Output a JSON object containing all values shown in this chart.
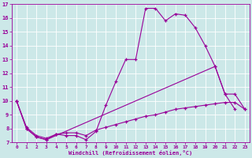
{
  "xlabel": "Windchill (Refroidissement éolien,°C)",
  "bg_color": "#cce8e8",
  "line_color": "#990099",
  "grid_color": "#ffffff",
  "xlim": [
    -0.5,
    23.5
  ],
  "ylim": [
    7,
    17
  ],
  "yticks": [
    7,
    8,
    9,
    10,
    11,
    12,
    13,
    14,
    15,
    16,
    17
  ],
  "xticks": [
    0,
    1,
    2,
    3,
    4,
    5,
    6,
    7,
    8,
    9,
    10,
    11,
    12,
    13,
    14,
    15,
    16,
    17,
    18,
    19,
    20,
    21,
    22,
    23
  ],
  "line1_x": [
    0,
    1,
    2,
    3,
    4,
    5,
    6,
    7,
    8,
    9,
    10,
    11,
    12,
    13,
    14,
    15,
    16,
    17,
    18,
    19,
    20,
    21,
    22
  ],
  "line1_y": [
    10,
    8,
    7.4,
    7.2,
    7.6,
    7.5,
    7.5,
    7.2,
    7.8,
    9.7,
    11.4,
    13.0,
    13.0,
    16.7,
    16.7,
    15.8,
    16.3,
    16.2,
    15.3,
    14.0,
    12.5,
    10.5,
    9.4
  ],
  "line2_x": [
    0,
    1,
    2,
    3,
    4,
    5,
    6,
    7,
    8,
    9,
    10,
    11,
    12,
    13,
    14,
    15,
    16,
    17,
    18,
    19,
    20,
    21,
    22,
    23
  ],
  "line2_y": [
    10,
    8.1,
    7.5,
    7.3,
    7.6,
    7.7,
    7.7,
    7.5,
    7.9,
    8.1,
    8.3,
    8.5,
    8.7,
    8.9,
    9.0,
    9.2,
    9.4,
    9.5,
    9.6,
    9.7,
    9.8,
    9.9,
    9.9,
    9.4
  ],
  "line3_x": [
    0,
    1,
    2,
    3,
    20,
    21,
    22,
    23
  ],
  "line3_y": [
    10,
    8,
    7.4,
    7.2,
    12.5,
    10.5,
    10.5,
    9.4
  ]
}
